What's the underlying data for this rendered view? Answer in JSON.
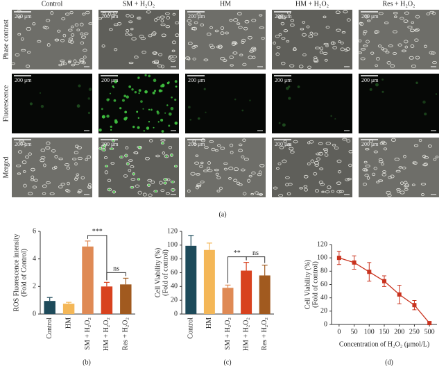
{
  "panel_a": {
    "columns": [
      "Control",
      "SM + H₂O₂",
      "HM",
      "HM + H₂O₂",
      "Res + H₂O₂"
    ],
    "rows": [
      "Phase contrast",
      "Fluorescence",
      "Merged"
    ],
    "scale_label": "200 μm",
    "label": "(a)"
  },
  "chart_data": [
    {
      "type": "bar",
      "panel_label": "(b)",
      "ylabel": "ROS Fluorescence intensity",
      "ylabel2": "(Fold of Control)",
      "categories": [
        "Control",
        "HM",
        "SM + H₂O₂",
        "HM + H₂O₂",
        "Res + H₂O₂"
      ],
      "values": [
        0.95,
        0.75,
        4.9,
        2.0,
        2.15
      ],
      "errors": [
        0.25,
        0.1,
        0.4,
        0.3,
        0.45
      ],
      "colors": [
        "#1d4a5a",
        "#f4b757",
        "#df8a55",
        "#d8421f",
        "#a15a1f"
      ],
      "ylim": [
        0,
        6
      ],
      "yticks": [
        0,
        2,
        4,
        6
      ],
      "annotations": [
        "***",
        "ns"
      ]
    },
    {
      "type": "bar",
      "panel_label": "(c)",
      "ylabel": "Cell Viability (%)",
      "ylabel2": "(Fold of control)",
      "categories": [
        "Control",
        "HM",
        "SM + H₂O₂",
        "HM + H₂O₂",
        "Res + H₂O₂"
      ],
      "values": [
        99,
        93,
        38,
        63,
        56
      ],
      "errors": [
        15,
        10,
        4,
        12,
        15
      ],
      "colors": [
        "#1d4a5a",
        "#f4b757",
        "#df8a55",
        "#d8421f",
        "#a15a1f"
      ],
      "ylim": [
        0,
        120
      ],
      "yticks": [
        0,
        20,
        40,
        60,
        80,
        100,
        120
      ],
      "annotations": [
        "**",
        "ns"
      ]
    },
    {
      "type": "line",
      "panel_label": "(d)",
      "ylabel": "Cell Viability (%)",
      "ylabel2": "(Fold of control)",
      "xlabel": "Concentration of H₂O₂ (μmol/L)",
      "categories": [
        0,
        50,
        100,
        150,
        200,
        250,
        500
      ],
      "values": [
        100,
        93,
        79,
        65,
        45,
        29,
        2
      ],
      "errors": [
        10,
        10,
        14,
        8,
        14,
        7,
        2
      ],
      "color": "#c9331f",
      "ylim": [
        0,
        120
      ],
      "yticks": [
        0,
        20,
        40,
        60,
        80,
        100,
        120
      ]
    }
  ]
}
